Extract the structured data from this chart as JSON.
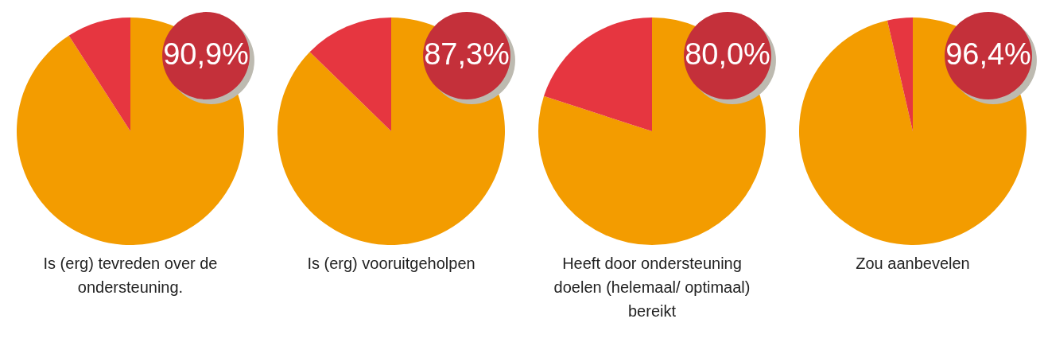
{
  "chart_data": [
    {
      "type": "pie",
      "title": "Is (erg) tevreden over de ondersteuning.",
      "categories": [
        null,
        null
      ],
      "values": [
        90.9,
        9.1
      ],
      "colors": [
        "#f39c00",
        "#e63640"
      ],
      "value_labels": [
        "90,9%",
        null
      ]
    },
    {
      "type": "pie",
      "title": "Is (erg) vooruitgeholpen",
      "categories": [
        null,
        null
      ],
      "values": [
        87.3,
        12.7
      ],
      "colors": [
        "#f39c00",
        "#e63640"
      ],
      "value_labels": [
        "87,3%",
        null
      ]
    },
    {
      "type": "pie",
      "title": "Heeft door ondersteuning doelen (helemaal/ optimaal) bereikt",
      "categories": [
        null,
        null
      ],
      "values": [
        80.0,
        20.0
      ],
      "colors": [
        "#f39c00",
        "#e63640"
      ],
      "value_labels": [
        "80,0%",
        null
      ]
    },
    {
      "type": "pie",
      "title": "Zou aanbevelen",
      "categories": [
        null,
        null
      ],
      "values": [
        96.4,
        3.6
      ],
      "colors": [
        "#f39c00",
        "#e63640"
      ],
      "value_labels": [
        "96,4%",
        null
      ]
    }
  ]
}
